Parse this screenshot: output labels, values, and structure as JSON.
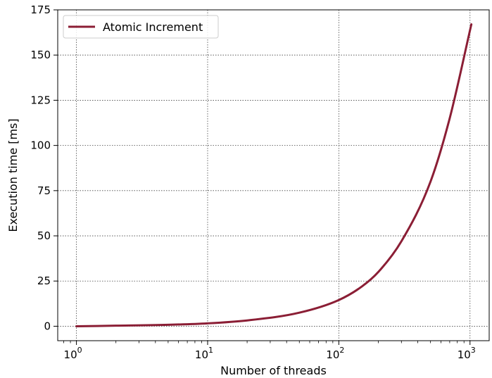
{
  "chart_data": {
    "type": "line",
    "xlabel": "Number of threads",
    "ylabel": "Execution time [ms]",
    "x_scale": "log",
    "xlim": [
      0.72,
      1400
    ],
    "ylim": [
      -8,
      175
    ],
    "x_ticks": [
      {
        "value": 1,
        "base": "10",
        "exp": "0"
      },
      {
        "value": 10,
        "base": "10",
        "exp": "1"
      },
      {
        "value": 100,
        "base": "10",
        "exp": "2"
      },
      {
        "value": 1000,
        "base": "10",
        "exp": "3"
      }
    ],
    "y_ticks": [
      {
        "value": 0,
        "label": "0"
      },
      {
        "value": 25,
        "label": "25"
      },
      {
        "value": 50,
        "label": "50"
      },
      {
        "value": 75,
        "label": "75"
      },
      {
        "value": 100,
        "label": "100"
      },
      {
        "value": 125,
        "label": "125"
      },
      {
        "value": 150,
        "label": "150"
      },
      {
        "value": 175,
        "label": "175"
      }
    ],
    "grid": true,
    "legend": "top-left",
    "series": [
      {
        "name": "Atomic Increment",
        "color": "#8b1e35",
        "x": [
          1,
          2,
          5,
          10,
          20,
          50,
          100,
          150,
          200,
          300,
          500,
          700,
          1024
        ],
        "y": [
          0,
          0.3,
          0.8,
          1.6,
          3.2,
          7.5,
          14.5,
          22,
          30,
          47,
          80,
          115,
          167
        ]
      }
    ]
  }
}
